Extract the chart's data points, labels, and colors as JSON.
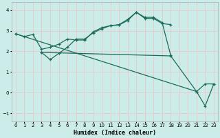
{
  "xlabel": "Humidex (Indice chaleur)",
  "bg_color": "#ccecea",
  "grid_color": "#dddddd",
  "line_color": "#1a6b5a",
  "xlim": [
    -0.5,
    23.5
  ],
  "ylim": [
    -1.4,
    4.4
  ],
  "xticks": [
    0,
    1,
    2,
    3,
    4,
    5,
    6,
    7,
    8,
    9,
    10,
    11,
    12,
    13,
    14,
    15,
    16,
    17,
    18,
    19,
    20,
    21,
    22,
    23
  ],
  "yticks": [
    -1,
    0,
    1,
    2,
    3,
    4
  ],
  "series1_x": [
    0,
    1,
    2,
    3,
    4,
    5,
    6,
    7,
    8,
    9,
    10,
    11,
    12,
    13,
    14,
    15,
    16,
    17,
    18
  ],
  "series1_y": [
    2.85,
    2.72,
    2.82,
    2.1,
    2.2,
    2.35,
    2.6,
    2.55,
    2.55,
    2.95,
    3.15,
    3.25,
    3.3,
    3.55,
    3.9,
    3.6,
    3.6,
    3.35,
    3.3
  ],
  "series2_x": [
    3,
    4,
    5,
    6,
    7,
    8,
    9,
    10,
    11,
    12,
    13,
    14,
    15,
    16,
    17,
    18
  ],
  "series2_y": [
    1.95,
    1.6,
    1.9,
    2.2,
    2.6,
    2.6,
    2.9,
    3.1,
    3.25,
    3.28,
    3.5,
    3.9,
    3.65,
    3.65,
    3.4,
    1.8
  ],
  "series3_x": [
    3,
    18,
    21,
    22,
    23
  ],
  "series3_y": [
    1.95,
    1.78,
    0.05,
    -0.65,
    0.42
  ],
  "series4_x": [
    0,
    21,
    22,
    23
  ],
  "series4_y": [
    2.85,
    0.05,
    0.42,
    0.42
  ]
}
